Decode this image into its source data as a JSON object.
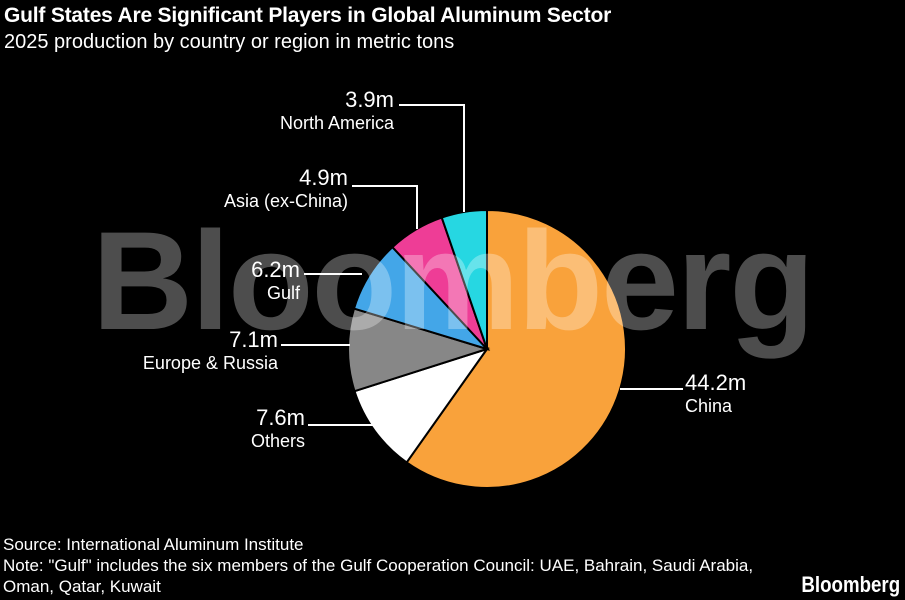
{
  "header": {
    "title": "Gulf States Are Significant Players in Global Aluminum Sector",
    "subtitle": "2025 production by country or region in metric tons"
  },
  "watermark": {
    "text": "Bloomberg"
  },
  "footer": {
    "source": "Source: International Aluminum Institute",
    "note": "Note: \"Gulf\" includes the six members of the Gulf Cooperation Council: UAE, Bahrain, Saudi Arabia, Oman, Qatar, Kuwait",
    "logo": "Bloomberg"
  },
  "colors": {
    "background": "#000000",
    "text": "#ffffff",
    "leader_line": "#ffffff",
    "watermark_gray": "#4d4d4d"
  },
  "chart_data": {
    "type": "pie",
    "title": "Gulf States Are Significant Players in Global Aluminum Sector",
    "subtitle": "2025 production by country or region in metric tons",
    "unit": "million metric tons",
    "total": 73.9,
    "start": "12 o'clock",
    "direction": "clockwise",
    "slices": [
      {
        "name": "China",
        "value": 44.2,
        "label": "44.2m",
        "color": "#F9A23B"
      },
      {
        "name": "Others",
        "value": 7.6,
        "label": "7.6m",
        "color": "#FFFFFF"
      },
      {
        "name": "Europe & Russia",
        "value": 7.1,
        "label": "7.1m",
        "color": "#878787"
      },
      {
        "name": "Gulf",
        "value": 6.2,
        "label": "6.2m",
        "color": "#43A6E8"
      },
      {
        "name": "Asia (ex-China)",
        "value": 4.9,
        "label": "4.9m",
        "color": "#EE3D96"
      },
      {
        "name": "North America",
        "value": 3.9,
        "label": "3.9m",
        "color": "#26D7E2"
      }
    ]
  }
}
